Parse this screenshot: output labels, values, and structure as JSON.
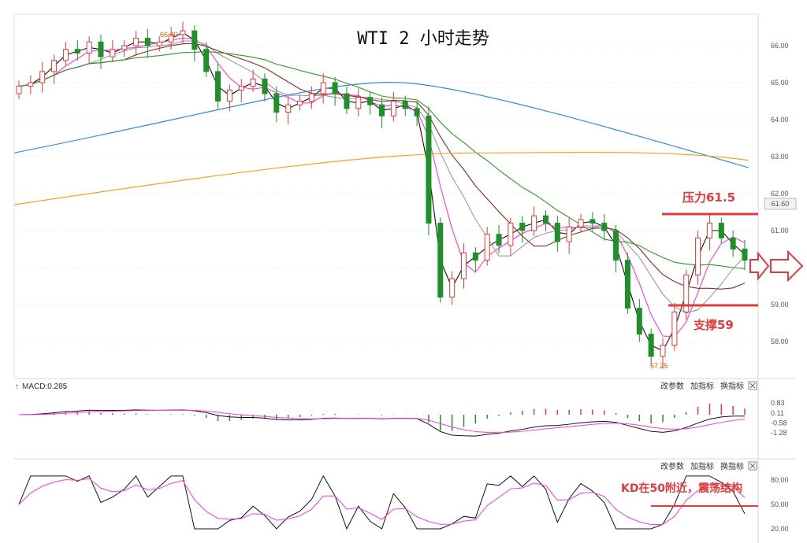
{
  "title": "WTI 2 小时走势",
  "price_axis": {
    "ticks": [
      "66.00",
      "65.00",
      "64.00",
      "63.00",
      "62.00",
      "61.00",
      "60.00",
      "59.00",
      "58.00"
    ],
    "current_label": "61.60"
  },
  "labels": {
    "high_mark": "66.40",
    "low_mark": "57.25",
    "resistance": "压力61.5",
    "support": "支撑59",
    "kd_note": "KD在50附近，震荡结构"
  },
  "macd_panel": {
    "label": "MACD:0.285",
    "ticks": [
      "0.83",
      "0.11",
      "-0.58",
      "-1.28"
    ],
    "buttons": [
      "改参数",
      "加指标",
      "换指标"
    ]
  },
  "kd_panel": {
    "ticks": [
      "80.00",
      "50.00",
      "20.00"
    ],
    "buttons": [
      "改参数",
      "加指标",
      "换指标"
    ]
  },
  "colors": {
    "up": "#e23b3b",
    "down": "#1f8f2a",
    "ma5": "#111111",
    "ma10": "#ff3ad6",
    "ma20": "#9a9a9a",
    "ma30": "#8b2a2a",
    "ma60": "#2a9a2a",
    "ma120": "#2f8de4",
    "ma250": "#f2a320",
    "annotation": "#e23b3b"
  },
  "chart_data": {
    "type": "candlestick",
    "title": "WTI 2 小时走势",
    "ylim": [
      57.2,
      66.6
    ],
    "levels": {
      "resistance": 61.5,
      "support": 59
    },
    "ohlc_sampled_closes": [
      64.9,
      65.0,
      65.3,
      65.6,
      65.9,
      65.8,
      66.1,
      65.7,
      65.9,
      66.0,
      66.2,
      66.0,
      66.1,
      66.3,
      66.4,
      65.9,
      65.3,
      64.5,
      64.8,
      64.9,
      65.1,
      64.7,
      64.2,
      64.4,
      64.5,
      64.7,
      65.0,
      64.7,
      64.3,
      64.6,
      64.4,
      64.1,
      64.5,
      64.3,
      64.1,
      61.2,
      59.2,
      59.7,
      60.4,
      60.2,
      60.9,
      60.6,
      61.2,
      61.0,
      61.4,
      61.2,
      60.7,
      61.1,
      61.3,
      61.2,
      61.0,
      60.2,
      58.9,
      58.2,
      57.6,
      57.9,
      58.8,
      59.8,
      60.8,
      61.2,
      60.8,
      60.5,
      60.2
    ],
    "ma_lines": [
      {
        "name": "MA120",
        "start": 63.1,
        "end": 62.7
      },
      {
        "name": "MA250",
        "start": 61.7,
        "end": 62.9
      }
    ],
    "macd": {
      "label_value": 0.285
    },
    "kd": {
      "note_level": 50
    }
  }
}
